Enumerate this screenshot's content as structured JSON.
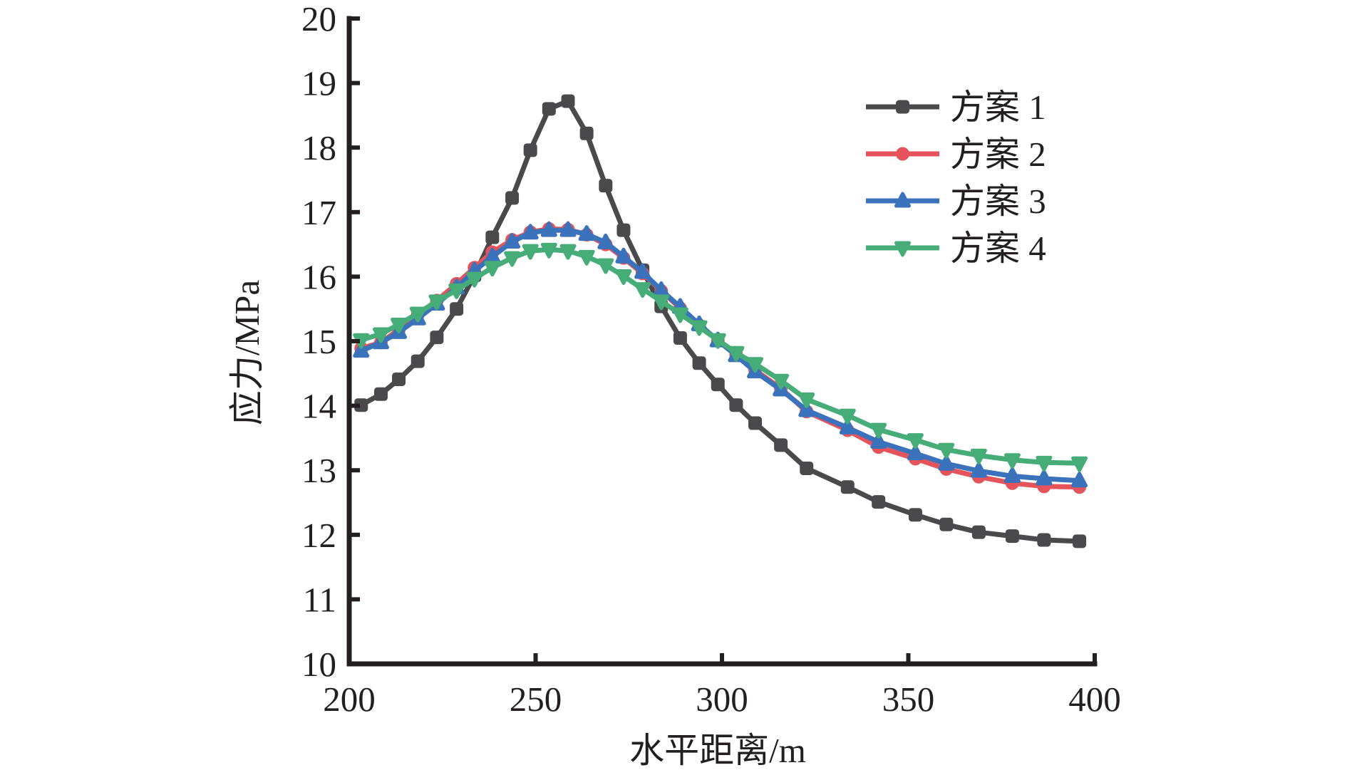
{
  "chart_data": {
    "type": "line",
    "title": "",
    "xlabel": "水平距离/m",
    "ylabel": "应力/MPa",
    "xlim": [
      200,
      400
    ],
    "ylim": [
      10,
      20
    ],
    "xticks": [
      200,
      250,
      300,
      350,
      400
    ],
    "yticks": [
      10,
      11,
      12,
      13,
      14,
      15,
      16,
      17,
      18,
      19,
      20
    ],
    "xtick_labels": [
      "200",
      "250",
      "300",
      "350",
      "400"
    ],
    "ytick_labels": [
      "10",
      "11",
      "12",
      "13",
      "14",
      "15",
      "16",
      "17",
      "18",
      "19",
      "20"
    ],
    "grid": false,
    "legend_position": "top-right",
    "x": [
      203.2,
      208.5,
      213.3,
      218.4,
      223.5,
      228.8,
      233.6,
      238.4,
      243.7,
      248.6,
      253.6,
      258.7,
      263.7,
      268.8,
      273.6,
      278.7,
      283.7,
      288.8,
      293.9,
      298.9,
      303.8,
      308.9,
      315.8,
      322.7,
      333.7,
      342.0,
      351.9,
      360.2,
      368.9,
      377.9,
      386.4,
      395.9
    ],
    "series": [
      {
        "name": "方案 1",
        "color": "#4a4a4c",
        "marker": "square",
        "values": [
          14.01,
          14.18,
          14.41,
          14.69,
          15.06,
          15.5,
          16.02,
          16.61,
          17.22,
          17.96,
          18.6,
          18.72,
          18.22,
          17.41,
          16.72,
          16.1,
          15.54,
          15.05,
          14.66,
          14.33,
          14.01,
          13.73,
          13.39,
          13.03,
          12.74,
          12.51,
          12.31,
          12.16,
          12.04,
          11.98,
          11.92,
          11.9
        ]
      },
      {
        "name": "方案 2",
        "color": "#e4545a",
        "marker": "circle",
        "values": [
          14.89,
          14.98,
          15.18,
          15.41,
          15.63,
          15.89,
          16.14,
          16.38,
          16.57,
          16.69,
          16.74,
          16.73,
          16.65,
          16.5,
          16.29,
          16.05,
          15.78,
          15.51,
          15.25,
          15.01,
          14.79,
          14.55,
          14.27,
          13.91,
          13.62,
          13.36,
          13.18,
          13.02,
          12.9,
          12.8,
          12.75,
          12.74
        ]
      },
      {
        "name": "方案 3",
        "color": "#3a72bb",
        "marker": "triangle-up",
        "values": [
          14.85,
          14.98,
          15.14,
          15.35,
          15.58,
          15.83,
          16.09,
          16.31,
          16.54,
          16.68,
          16.72,
          16.72,
          16.66,
          16.53,
          16.31,
          16.07,
          15.79,
          15.53,
          15.26,
          15.01,
          14.78,
          14.53,
          14.25,
          13.93,
          13.66,
          13.44,
          13.26,
          13.1,
          12.99,
          12.91,
          12.87,
          12.84
        ]
      },
      {
        "name": "方案 4",
        "color": "#47ad78",
        "marker": "triangle-down",
        "values": [
          15.02,
          15.11,
          15.26,
          15.43,
          15.62,
          15.79,
          15.97,
          16.14,
          16.29,
          16.4,
          16.42,
          16.4,
          16.31,
          16.18,
          16.01,
          15.81,
          15.62,
          15.42,
          15.22,
          15.02,
          14.82,
          14.65,
          14.39,
          14.1,
          13.85,
          13.63,
          13.47,
          13.32,
          13.23,
          13.16,
          13.12,
          13.11
        ]
      }
    ]
  }
}
